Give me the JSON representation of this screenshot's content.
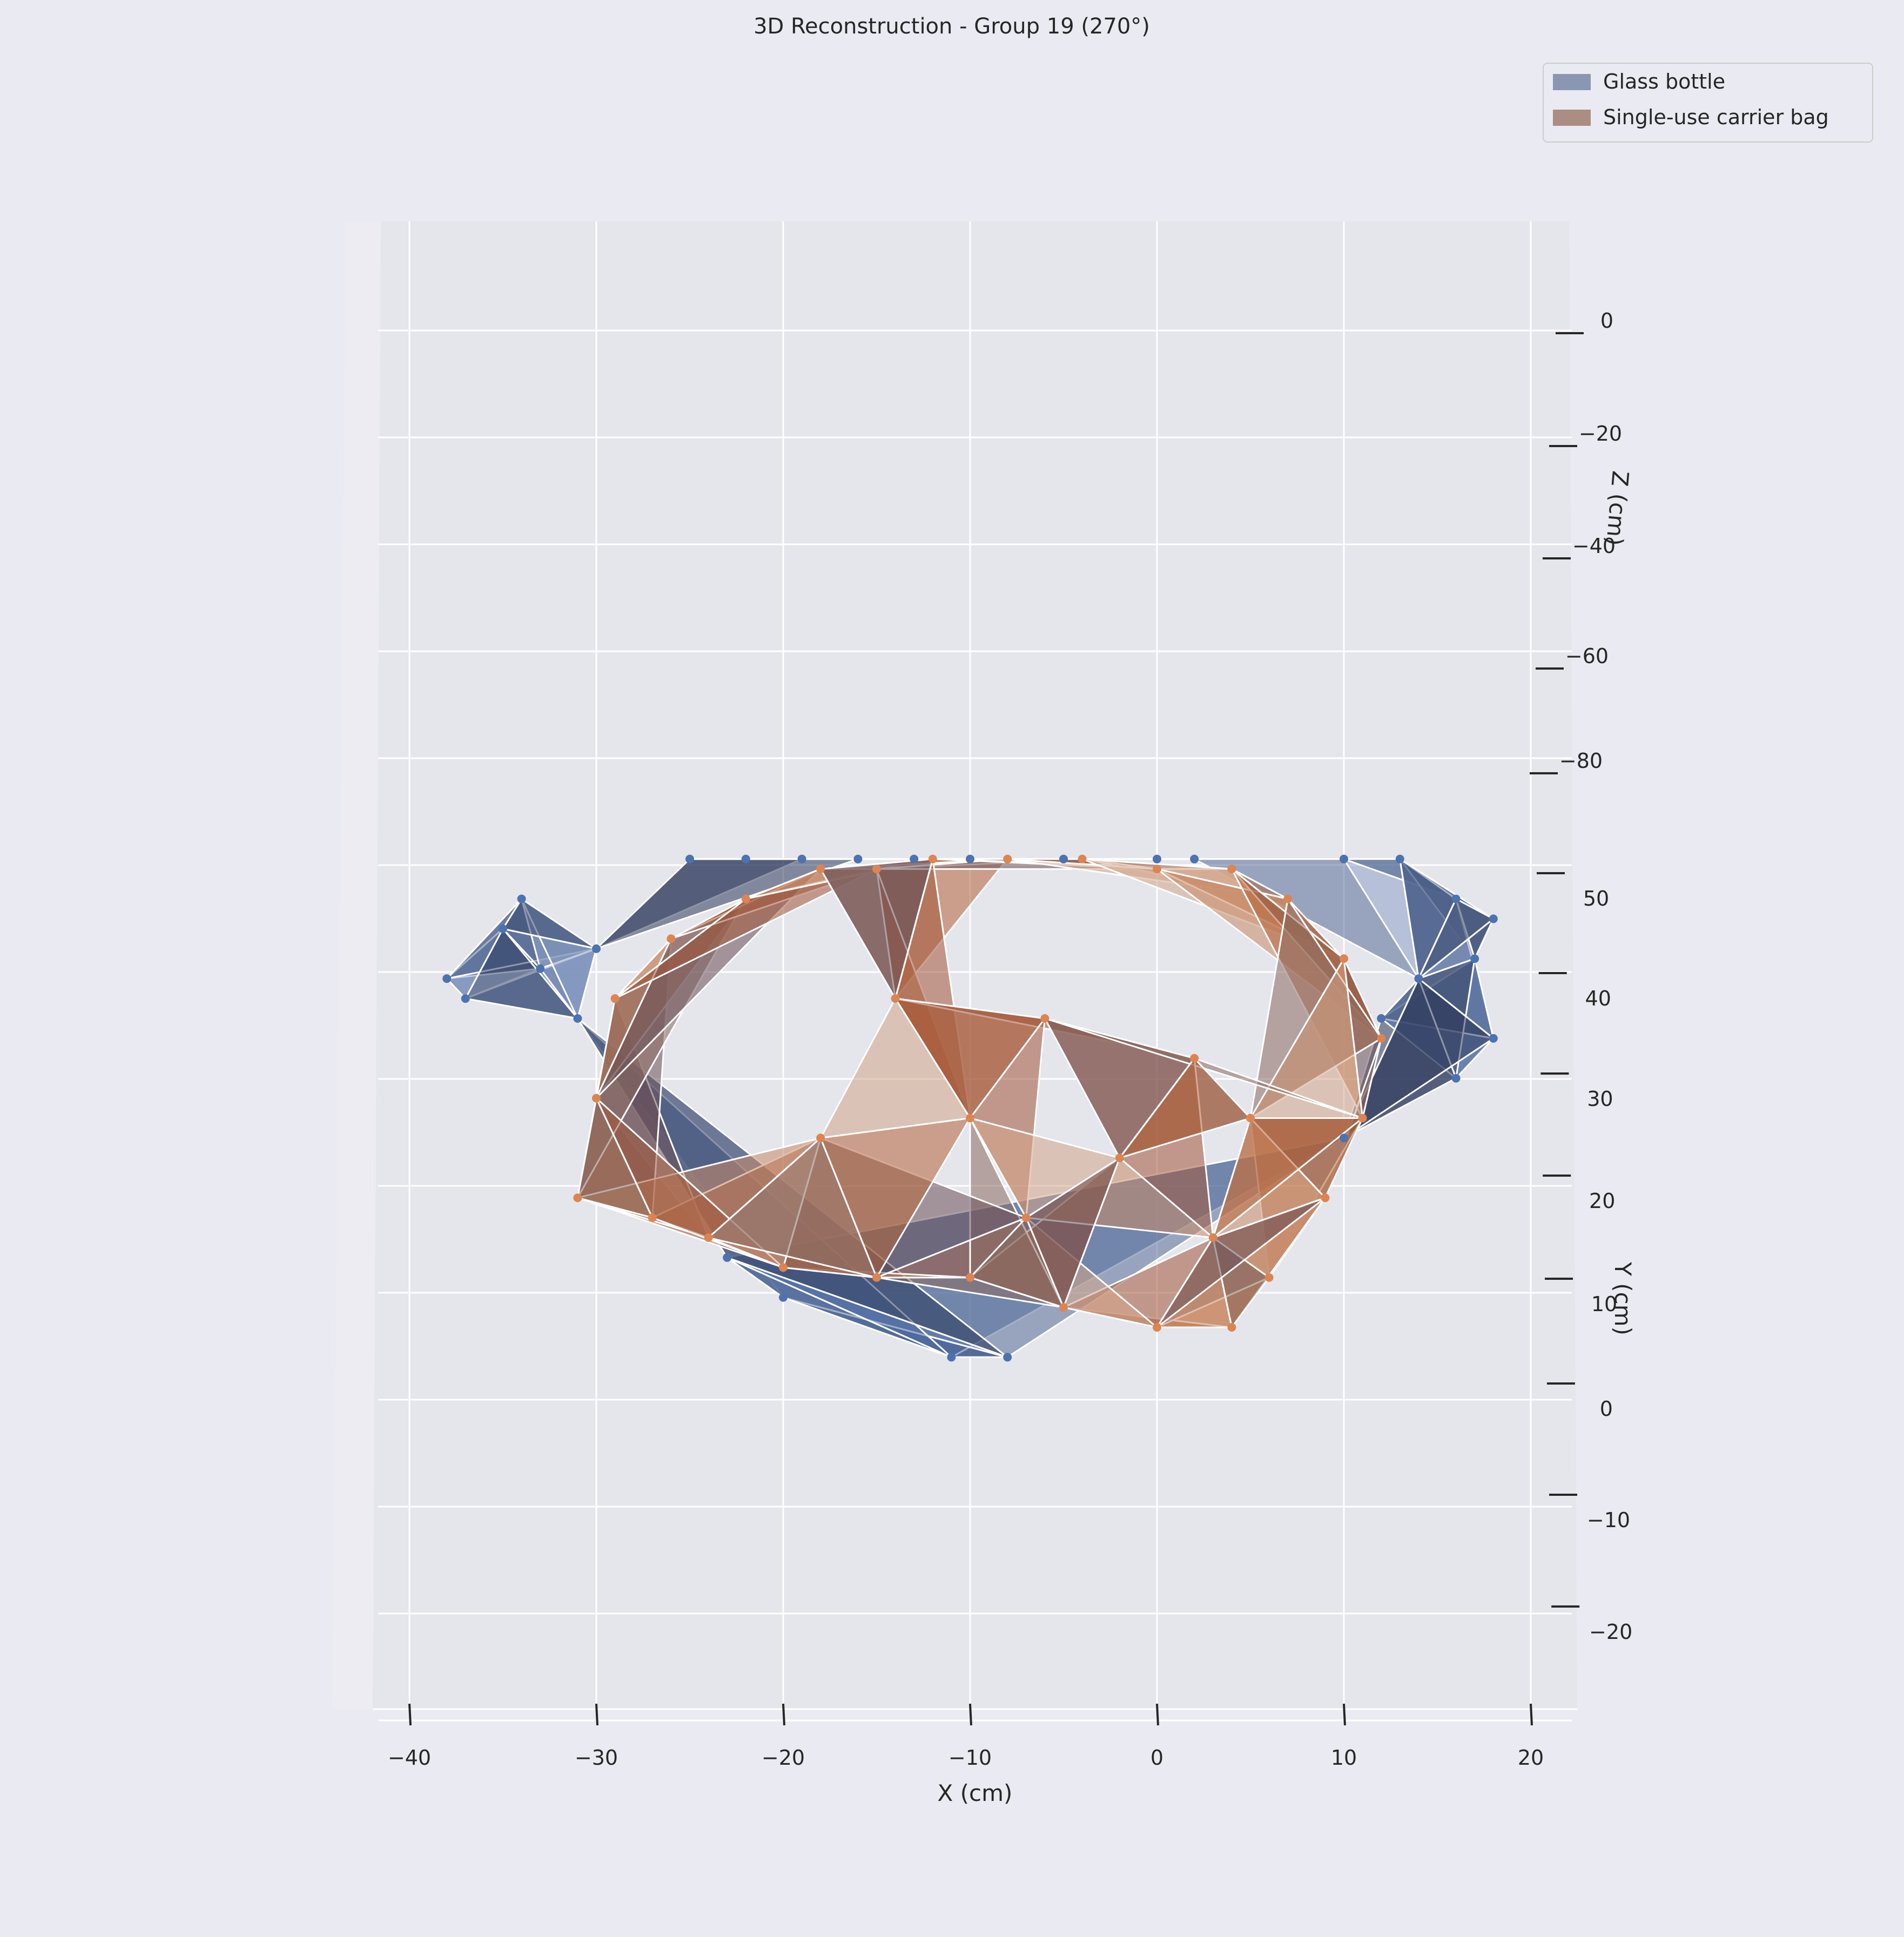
{
  "chart_data": {
    "type": "3d-mesh-scatter",
    "title": "3D Reconstruction - Group 19 (270°)",
    "xlabel": "X (cm)",
    "ylabel": "Y (cm)",
    "zlabel": "Z (cm)",
    "xlim": [
      -42,
      22
    ],
    "ylim": [
      -28,
      58
    ],
    "zlim": [
      -95,
      15
    ],
    "x_ticks": [
      -40,
      -30,
      -20,
      -10,
      0,
      10,
      20
    ],
    "y_ticks": [
      -20,
      -10,
      0,
      10,
      20,
      30,
      40,
      50
    ],
    "z_ticks": [
      0,
      -20,
      -40,
      -60,
      -80
    ],
    "grid": true,
    "legend_position": "top-right",
    "legend": [
      {
        "label": "Glass bottle",
        "color": "#8a97b3"
      },
      {
        "label": "Single-use carrier bag",
        "color": "#ab8e82"
      }
    ],
    "series": [
      {
        "name": "Glass bottle",
        "color": "#4c72b0",
        "edge_color": "#ffffff",
        "points": [
          [
            -38,
            44
          ],
          [
            -37,
            42
          ],
          [
            -35,
            49
          ],
          [
            -34,
            52
          ],
          [
            -33,
            45
          ],
          [
            -31,
            40
          ],
          [
            -30,
            47
          ],
          [
            -25,
            56
          ],
          [
            -22,
            56
          ],
          [
            -19,
            56
          ],
          [
            -16,
            56
          ],
          [
            -13,
            56
          ],
          [
            -10,
            56
          ],
          [
            -5,
            56
          ],
          [
            0,
            56
          ],
          [
            2,
            56
          ],
          [
            10,
            56
          ],
          [
            13,
            56
          ],
          [
            16,
            52
          ],
          [
            18,
            50
          ],
          [
            17,
            46
          ],
          [
            14,
            44
          ],
          [
            12,
            40
          ],
          [
            18,
            38
          ],
          [
            16,
            34
          ],
          [
            10,
            28
          ],
          [
            -20,
            12
          ],
          [
            -11,
            6
          ],
          [
            -8,
            6
          ],
          [
            -23,
            16
          ]
        ]
      },
      {
        "name": "Single-use carrier bag",
        "color": "#dd8452",
        "edge_color": "#ffffff",
        "points": [
          [
            -31,
            22
          ],
          [
            -30,
            32
          ],
          [
            -29,
            42
          ],
          [
            -26,
            48
          ],
          [
            -22,
            52
          ],
          [
            -18,
            55
          ],
          [
            -15,
            55
          ],
          [
            -12,
            56
          ],
          [
            -8,
            56
          ],
          [
            -4,
            56
          ],
          [
            0,
            55
          ],
          [
            4,
            55
          ],
          [
            7,
            52
          ],
          [
            10,
            46
          ],
          [
            12,
            38
          ],
          [
            11,
            30
          ],
          [
            9,
            22
          ],
          [
            6,
            14
          ],
          [
            4,
            9
          ],
          [
            0,
            9
          ],
          [
            -5,
            11
          ],
          [
            -10,
            14
          ],
          [
            -15,
            14
          ],
          [
            -20,
            15
          ],
          [
            -24,
            18
          ],
          [
            -27,
            20
          ],
          [
            -14,
            42
          ],
          [
            -6,
            40
          ],
          [
            2,
            36
          ],
          [
            -10,
            30
          ],
          [
            -2,
            26
          ],
          [
            5,
            30
          ],
          [
            -18,
            28
          ],
          [
            -7,
            20
          ],
          [
            3,
            18
          ]
        ]
      }
    ]
  }
}
